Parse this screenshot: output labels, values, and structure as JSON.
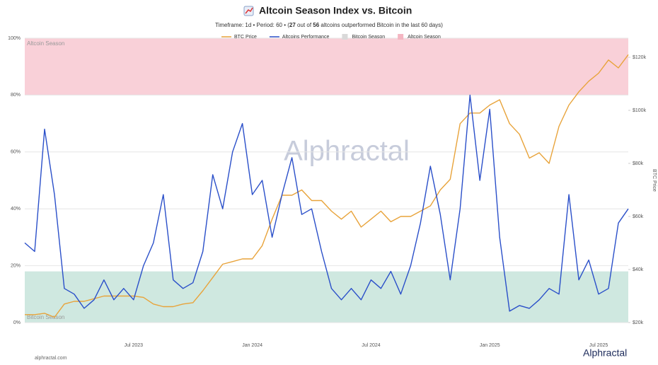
{
  "chart_data": {
    "type": "line",
    "title": "Altcoin Season Index vs. Bitcoin",
    "subtitle_parts": [
      {
        "text": "Timeframe: 1d  •  Period: 60  •  ("
      },
      {
        "text": "27",
        "bold": true
      },
      {
        "text": " out of "
      },
      {
        "text": "56",
        "bold": true
      },
      {
        "text": " altcoins outperformed Bitcoin in the last 60 days)"
      }
    ],
    "y2label": "BTC Price",
    "watermark": "Alphractal",
    "logo": "Alphractal",
    "footer": "alphractal.com",
    "categories": [
      null,
      null,
      null,
      null,
      null,
      null,
      null,
      null,
      null,
      null,
      null,
      "Jul 2023",
      null,
      null,
      null,
      null,
      null,
      null,
      null,
      null,
      null,
      null,
      null,
      "Jan 2024",
      null,
      null,
      null,
      null,
      null,
      null,
      null,
      null,
      null,
      null,
      null,
      "Jul 2024",
      null,
      null,
      null,
      null,
      null,
      null,
      null,
      null,
      null,
      null,
      null,
      "Jan 2025",
      null,
      null,
      null,
      null,
      null,
      null,
      null,
      null,
      null,
      null,
      "Jul 2025",
      null,
      null,
      null
    ],
    "series": [
      {
        "name": "BTC Price",
        "color": "#e8a33a",
        "axis": "y2",
        "values": [
          23000,
          23000,
          23500,
          22000,
          27000,
          28000,
          28000,
          29000,
          30000,
          30000,
          30000,
          30000,
          29500,
          27000,
          26000,
          26000,
          27000,
          27500,
          32000,
          37000,
          42000,
          43000,
          44000,
          44000,
          49000,
          59000,
          68000,
          68000,
          70000,
          66000,
          66000,
          62000,
          59000,
          62000,
          56000,
          59000,
          62000,
          58000,
          60000,
          60000,
          62000,
          64000,
          70000,
          74000,
          95000,
          99000,
          99000,
          102000,
          104000,
          95000,
          91000,
          82000,
          84000,
          80000,
          94000,
          102000,
          107000,
          111000,
          114000,
          119000,
          116000,
          121000
        ]
      },
      {
        "name": "Altcoins Performance",
        "color": "#2a4fc9",
        "values": [
          28,
          25,
          68,
          45,
          12,
          10,
          5,
          8,
          15,
          8,
          12,
          8,
          20,
          28,
          45,
          15,
          12,
          14,
          25,
          52,
          40,
          60,
          70,
          45,
          50,
          30,
          45,
          58,
          38,
          40,
          25,
          12,
          8,
          12,
          8,
          15,
          12,
          18,
          10,
          20,
          35,
          55,
          38,
          15,
          40,
          80,
          50,
          75,
          30,
          4,
          6,
          5,
          8,
          12,
          10,
          45,
          15,
          22,
          10,
          12,
          35,
          40
        ]
      }
    ],
    "bands": [
      {
        "name": "Bitcoin Season",
        "from": 0,
        "to": 18,
        "color": "#cfe8e0",
        "legend_color": "#d9d9d9"
      },
      {
        "name": "Altcoin Season",
        "from": 80,
        "to": 100,
        "color": "#f9d0d8",
        "legend_color": "#f4b6c2"
      }
    ],
    "ylim": [
      0,
      100
    ],
    "yticks": [
      {
        "value": 0,
        "label": "0%"
      },
      {
        "value": 20,
        "label": "20%"
      },
      {
        "value": 40,
        "label": "40%"
      },
      {
        "value": 60,
        "label": "60%"
      },
      {
        "value": 80,
        "label": "80%"
      },
      {
        "value": 100,
        "label": "100%"
      }
    ],
    "y2lim": [
      20000,
      127200
    ],
    "y2ticks": [
      {
        "value": 20000,
        "label": "$20k"
      },
      {
        "value": 40000,
        "label": "$40k"
      },
      {
        "value": 60000,
        "label": "$60k"
      },
      {
        "value": 80000,
        "label": "$80k"
      },
      {
        "value": 100000,
        "label": "$100k"
      },
      {
        "value": 120000,
        "label": "$120k"
      }
    ],
    "grid": true
  }
}
